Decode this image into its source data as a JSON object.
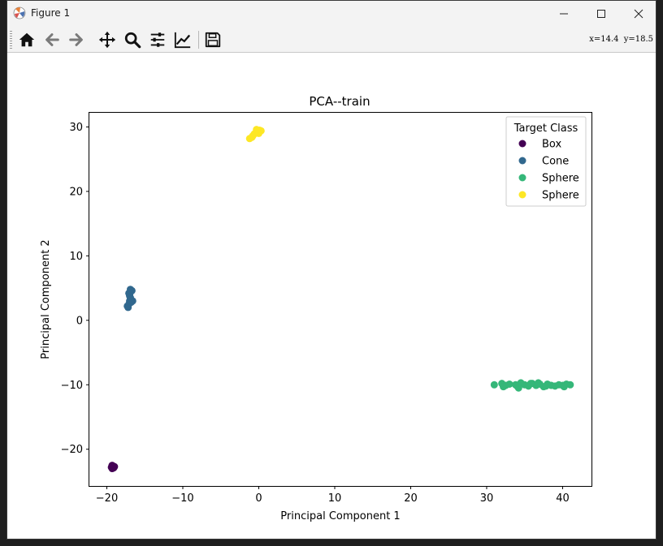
{
  "window": {
    "title": "Figure 1"
  },
  "toolbar": {
    "buttons": [
      {
        "name": "home-icon",
        "label": "Home"
      },
      {
        "name": "back-icon",
        "label": "Back"
      },
      {
        "name": "forward-icon",
        "label": "Forward"
      },
      {
        "name": "pan-icon",
        "label": "Pan"
      },
      {
        "name": "zoom-icon",
        "label": "Zoom"
      },
      {
        "name": "subplots-icon",
        "label": "Subplots"
      },
      {
        "name": "customize-icon",
        "label": "Customize"
      },
      {
        "name": "save-icon",
        "label": "Save"
      }
    ],
    "coords": {
      "x_label": "x=14.4",
      "y_label": "y=18.5"
    }
  },
  "chart_data": {
    "type": "scatter",
    "title": "PCA--train",
    "xlabel": "Principal Component 1",
    "ylabel": "Principal Component 2",
    "xlim": [
      -22.3,
      43.8
    ],
    "ylim": [
      -25.7,
      32.2
    ],
    "xticks": [
      -20,
      -10,
      0,
      10,
      20,
      30,
      40
    ],
    "yticks": [
      -20,
      -10,
      0,
      10,
      20,
      30
    ],
    "xtick_labels": [
      "−20",
      "−10",
      "0",
      "10",
      "20",
      "30",
      "40"
    ],
    "ytick_labels": [
      "−20",
      "−10",
      "0",
      "10",
      "20",
      "30"
    ],
    "grid": false,
    "legend": {
      "title": "Target Class",
      "placement": "top-right"
    },
    "series": [
      {
        "name": "Box",
        "color": "#440154",
        "points": [
          [
            -19.3,
            -22.5
          ],
          [
            -19.1,
            -22.9
          ],
          [
            -19.4,
            -22.8
          ],
          [
            -19.2,
            -22.6
          ],
          [
            -19.0,
            -22.7
          ],
          [
            -19.3,
            -23.0
          ]
        ]
      },
      {
        "name": "Cone",
        "color": "#31688e",
        "points": [
          [
            -17.2,
            2.0
          ],
          [
            -17.1,
            2.5
          ],
          [
            -17.0,
            3.0
          ],
          [
            -16.9,
            3.5
          ],
          [
            -17.0,
            4.0
          ],
          [
            -16.8,
            4.5
          ],
          [
            -16.9,
            4.8
          ],
          [
            -16.7,
            4.6
          ],
          [
            -17.3,
            2.2
          ],
          [
            -16.6,
            3.0
          ],
          [
            -17.0,
            3.8
          ],
          [
            -16.8,
            2.8
          ],
          [
            -17.1,
            4.2
          ]
        ]
      },
      {
        "name": "Sphere",
        "color": "#35b779",
        "points": [
          [
            31.0,
            -10.0
          ],
          [
            32.0,
            -9.8
          ],
          [
            32.5,
            -10.1
          ],
          [
            33.0,
            -9.9
          ],
          [
            34.0,
            -10.2
          ],
          [
            34.5,
            -9.7
          ],
          [
            35.0,
            -10.0
          ],
          [
            35.5,
            -10.2
          ],
          [
            36.0,
            -9.8
          ],
          [
            36.5,
            -10.1
          ],
          [
            37.0,
            -9.9
          ],
          [
            37.5,
            -10.3
          ],
          [
            38.0,
            -9.9
          ],
          [
            38.5,
            -10.1
          ],
          [
            39.0,
            -10.2
          ],
          [
            39.5,
            -10.0
          ],
          [
            40.0,
            -10.1
          ],
          [
            40.5,
            -9.9
          ],
          [
            41.0,
            -10.0
          ],
          [
            32.2,
            -10.3
          ],
          [
            34.2,
            -10.5
          ],
          [
            36.8,
            -9.7
          ],
          [
            33.8,
            -10.0
          ],
          [
            35.8,
            -9.8
          ],
          [
            37.8,
            -10.2
          ],
          [
            40.2,
            -10.3
          ]
        ]
      },
      {
        "name": "Sphere",
        "color": "#fde725",
        "points": [
          [
            -1.2,
            28.2
          ],
          [
            -0.8,
            28.6
          ],
          [
            -0.5,
            29.0
          ],
          [
            -0.2,
            29.3
          ],
          [
            0.1,
            29.5
          ],
          [
            0.3,
            29.4
          ],
          [
            -0.6,
            28.9
          ],
          [
            0.0,
            29.0
          ],
          [
            -0.3,
            29.6
          ],
          [
            -0.9,
            28.4
          ]
        ]
      }
    ]
  }
}
